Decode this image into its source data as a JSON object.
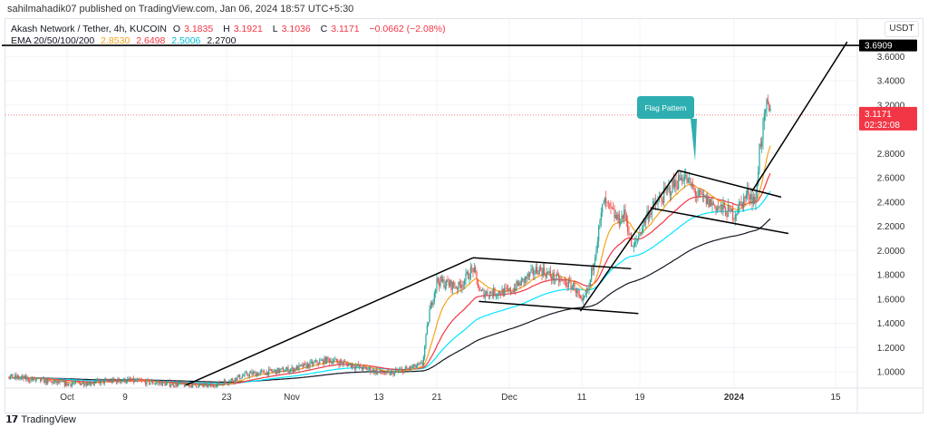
{
  "publish_line": "sahilmahadik07 published on TradingView.com, Jan 06, 2024 18:57 UTC+5:30",
  "legend": {
    "symbol": "Akash Network / Tether, 4h, KUCOIN",
    "open_label": "O",
    "open": "3.1835",
    "high_label": "H",
    "high": "3.1921",
    "low_label": "L",
    "low": "3.1036",
    "close_label": "C",
    "close": "3.1171",
    "change": "−0.0662 (−2.08%)",
    "ema_label": "EMA 20/50/100/200",
    "ema20": "2.8530",
    "ema50": "2.6498",
    "ema100": "2.5006",
    "ema200": "2.2700"
  },
  "currency_button": "USDT",
  "footer": {
    "logo_text": "TradingView",
    "logo_mark": "TV"
  },
  "colors": {
    "up": "#26a69a",
    "down": "#ef5350",
    "ema20": "#f7a21b",
    "ema50": "#f23645",
    "ema100": "#00e5ff",
    "ema200": "#131722",
    "callout": "#2eaeb0"
  },
  "chart_data": {
    "type": "candlestick",
    "title": "Akash Network / Tether, 4h, KUCOIN",
    "y_ticks": [
      "1.0000",
      "1.2000",
      "1.4000",
      "1.6000",
      "1.8000",
      "2.0000",
      "2.2000",
      "2.4000",
      "2.6000",
      "2.8000",
      "3.2000",
      "3.4000",
      "3.6000"
    ],
    "y_tick_values": [
      1.0,
      1.2,
      1.4,
      1.6,
      1.8,
      2.0,
      2.2,
      2.4,
      2.6,
      2.8,
      3.2,
      3.4,
      3.6
    ],
    "x_ticks": [
      {
        "label": "Oct",
        "day": 0
      },
      {
        "label": "9",
        "day": 8
      },
      {
        "label": "23",
        "day": 22
      },
      {
        "label": "Nov",
        "day": 31
      },
      {
        "label": "13",
        "day": 43
      },
      {
        "label": "21",
        "day": 51
      },
      {
        "label": "Dec",
        "day": 61
      },
      {
        "label": "11",
        "day": 71
      },
      {
        "label": "19",
        "day": 79
      },
      {
        "label": "2024",
        "day": 92
      },
      {
        "label": "15",
        "day": 106
      }
    ],
    "x_unit": "days since Oct 1 2023",
    "price_path": [
      [
        -8,
        0.96
      ],
      [
        0,
        0.9
      ],
      [
        8,
        0.93
      ],
      [
        14,
        0.9
      ],
      [
        20,
        0.88
      ],
      [
        25,
        0.98
      ],
      [
        31,
        1.02
      ],
      [
        36,
        1.1
      ],
      [
        39,
        1.06
      ],
      [
        44,
        0.98
      ],
      [
        48,
        1.04
      ],
      [
        49,
        1.06
      ],
      [
        50,
        1.5
      ],
      [
        51,
        1.75
      ],
      [
        54,
        1.7
      ],
      [
        56,
        1.85
      ],
      [
        57,
        1.65
      ],
      [
        61,
        1.66
      ],
      [
        65,
        1.85
      ],
      [
        68,
        1.75
      ],
      [
        70,
        1.7
      ],
      [
        71,
        1.55
      ],
      [
        72,
        1.7
      ],
      [
        73,
        2.05
      ],
      [
        74,
        2.4
      ],
      [
        76,
        2.25
      ],
      [
        77,
        2.3
      ],
      [
        78,
        2.0
      ],
      [
        80,
        2.3
      ],
      [
        83,
        2.5
      ],
      [
        85,
        2.62
      ],
      [
        87,
        2.45
      ],
      [
        90,
        2.35
      ],
      [
        92,
        2.3
      ],
      [
        94,
        2.48
      ],
      [
        95,
        2.4
      ],
      [
        95.5,
        2.85
      ],
      [
        96,
        3.0
      ],
      [
        96.5,
        3.18
      ],
      [
        97,
        3.12
      ]
    ],
    "current_price": "3.1171",
    "countdown": "02:32:08",
    "target_level": "3.6909",
    "annotations": {
      "callout": "Flag Pattern",
      "lines": [
        {
          "name": "target-line",
          "from": [
            -9,
            3.6909
          ],
          "to": [
            112,
            3.6909
          ]
        },
        {
          "name": "pole-1",
          "from": [
            16.4,
            0.89
          ],
          "to": [
            56,
            1.94
          ]
        },
        {
          "name": "flag-1-top",
          "from": [
            56,
            1.94
          ],
          "to": [
            77.8,
            1.85
          ]
        },
        {
          "name": "flag-1-bottom",
          "from": [
            56.8,
            1.58
          ],
          "to": [
            78.8,
            1.48
          ]
        },
        {
          "name": "pole-2",
          "from": [
            70.8,
            1.5
          ],
          "to": [
            84.3,
            2.66
          ]
        },
        {
          "name": "flag-2-top",
          "from": [
            84.3,
            2.66
          ],
          "to": [
            98.5,
            2.44
          ]
        },
        {
          "name": "flag-2-bottom",
          "from": [
            80.5,
            2.35
          ],
          "to": [
            99.5,
            2.14
          ]
        },
        {
          "name": "breakout-line",
          "from": [
            94.5,
            2.49
          ],
          "to": [
            107.6,
            3.72
          ]
        }
      ]
    }
  }
}
